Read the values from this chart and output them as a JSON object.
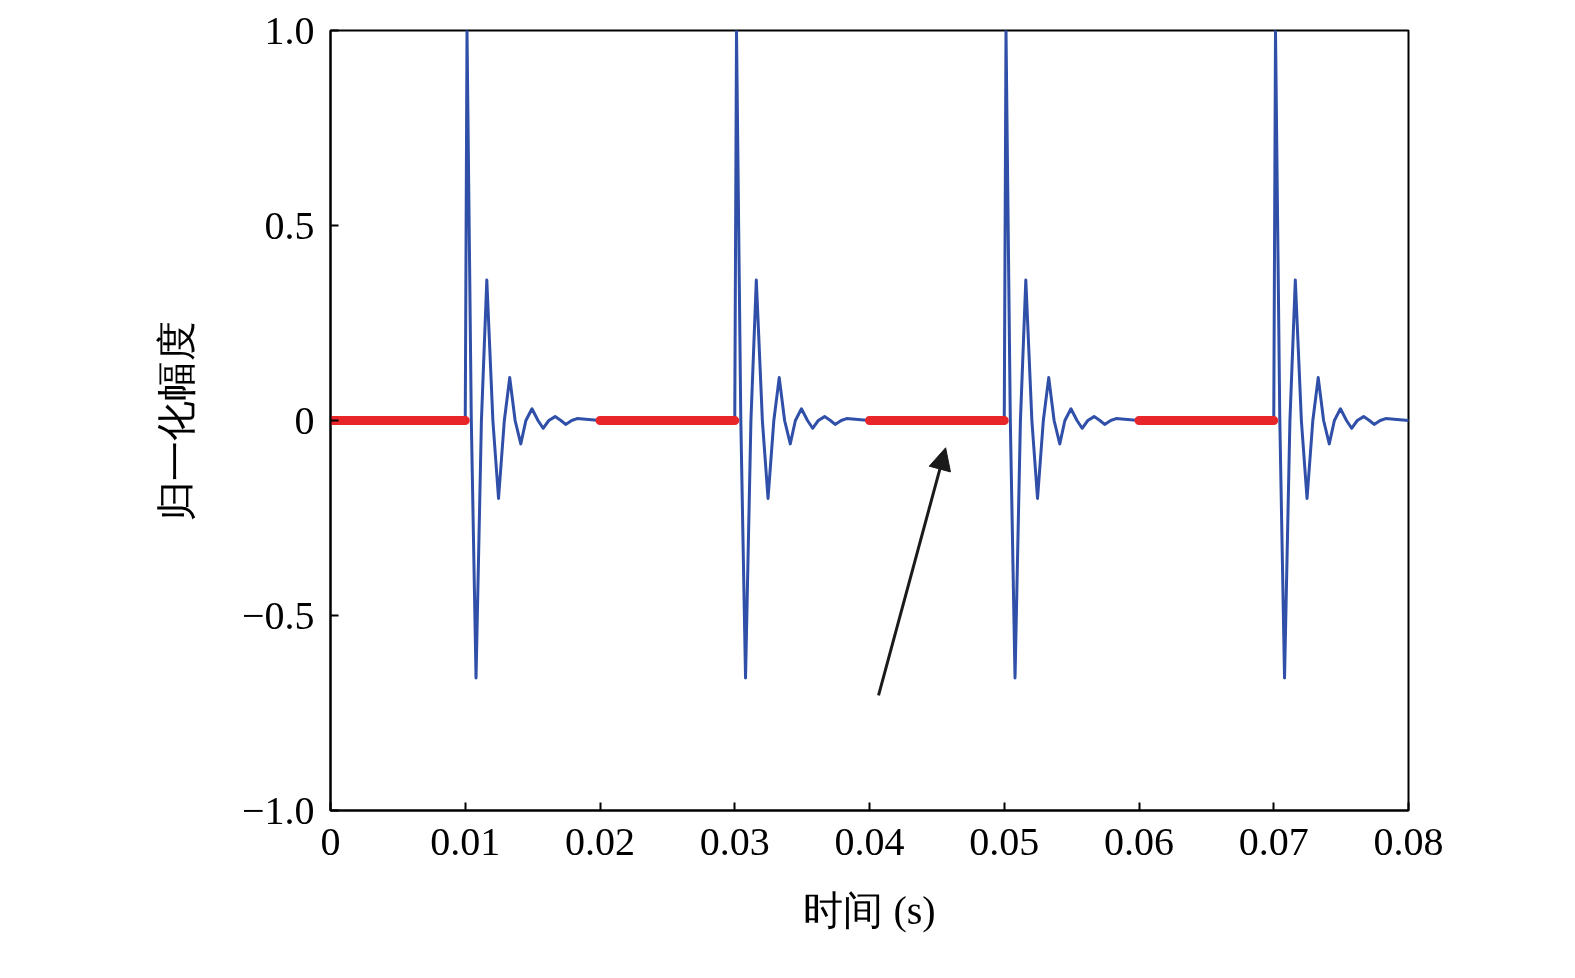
{
  "chart_data": {
    "type": "line",
    "xlabel": "时间 (s)",
    "ylabel": "归一化幅度",
    "xlim": [
      0,
      0.08
    ],
    "ylim": [
      -1,
      1
    ],
    "xticks": [
      0,
      0.01,
      0.02,
      0.03,
      0.04,
      0.05,
      0.06,
      0.07,
      0.08
    ],
    "yticks": [
      {
        "value": -1,
        "label": "−1.0"
      },
      {
        "value": -0.5,
        "label": "−0.5"
      },
      0,
      0.5,
      {
        "value": 1,
        "label": "1.0"
      }
    ],
    "grid": false,
    "line_style": "solid",
    "marker": "none",
    "series": [
      {
        "color": "#2f4fa8",
        "x": [
          0,
          0.01,
          0.01013,
          0.01045,
          0.0108,
          0.0112,
          0.0116,
          0.01205,
          0.01247,
          0.0129,
          0.0133,
          0.0137,
          0.01412,
          0.0145,
          0.01495,
          0.0154,
          0.01578,
          0.0162,
          0.01667,
          0.0171,
          0.01745,
          0.0179,
          0.0183,
          0.02,
          0.03,
          0.03013,
          0.03045,
          0.0308,
          0.0312,
          0.0316,
          0.03205,
          0.03247,
          0.0329,
          0.0333,
          0.0337,
          0.03412,
          0.0345,
          0.03495,
          0.0354,
          0.03578,
          0.0362,
          0.03667,
          0.0371,
          0.03745,
          0.0379,
          0.0383,
          0.04,
          0.05,
          0.05013,
          0.05045,
          0.0508,
          0.0512,
          0.0516,
          0.05205,
          0.05247,
          0.0529,
          0.0533,
          0.0537,
          0.05412,
          0.0545,
          0.05495,
          0.0554,
          0.05578,
          0.0562,
          0.05667,
          0.0571,
          0.05745,
          0.0579,
          0.0583,
          0.06,
          0.07,
          0.07013,
          0.07045,
          0.0708,
          0.0712,
          0.0716,
          0.07205,
          0.07247,
          0.0729,
          0.0733,
          0.0737,
          0.07412,
          0.0745,
          0.07495,
          0.0754,
          0.07578,
          0.0762,
          0.07667,
          0.0771,
          0.07745,
          0.0779,
          0.0783,
          0.08
        ],
        "values": [
          0,
          0,
          1,
          0,
          -0.66,
          0,
          0.36,
          0,
          -0.2,
          0,
          0.11,
          0,
          -0.06,
          0,
          0.03,
          0,
          -0.02,
          0,
          0.01,
          0,
          -0.01,
          0,
          0.005,
          0,
          0,
          1,
          0,
          -0.66,
          0,
          0.36,
          0,
          -0.2,
          0,
          0.11,
          0,
          -0.06,
          0,
          0.03,
          0,
          -0.02,
          0,
          0.01,
          0,
          -0.01,
          0,
          0.005,
          0,
          0,
          1,
          0,
          -0.66,
          0,
          0.36,
          0,
          -0.2,
          0,
          0.11,
          0,
          -0.06,
          0,
          0.03,
          0,
          -0.02,
          0,
          0.01,
          0,
          -0.01,
          0,
          0.005,
          0,
          0,
          1,
          0,
          -0.66,
          0,
          0.36,
          0,
          -0.2,
          0,
          0.11,
          0,
          -0.06,
          0,
          0.03,
          0,
          -0.02,
          0,
          0.01,
          0,
          -0.01,
          0,
          0.005,
          0
        ]
      },
      {
        "color": "#e8262a",
        "x": [
          0,
          0.01,
          0.015,
          0.02,
          0.03,
          0.035,
          0.04,
          0.05,
          0.055,
          0.06,
          0.07
        ],
        "values": [
          0,
          0,
          null,
          0,
          0,
          null,
          0,
          0,
          null,
          0,
          0
        ]
      }
    ]
  }
}
